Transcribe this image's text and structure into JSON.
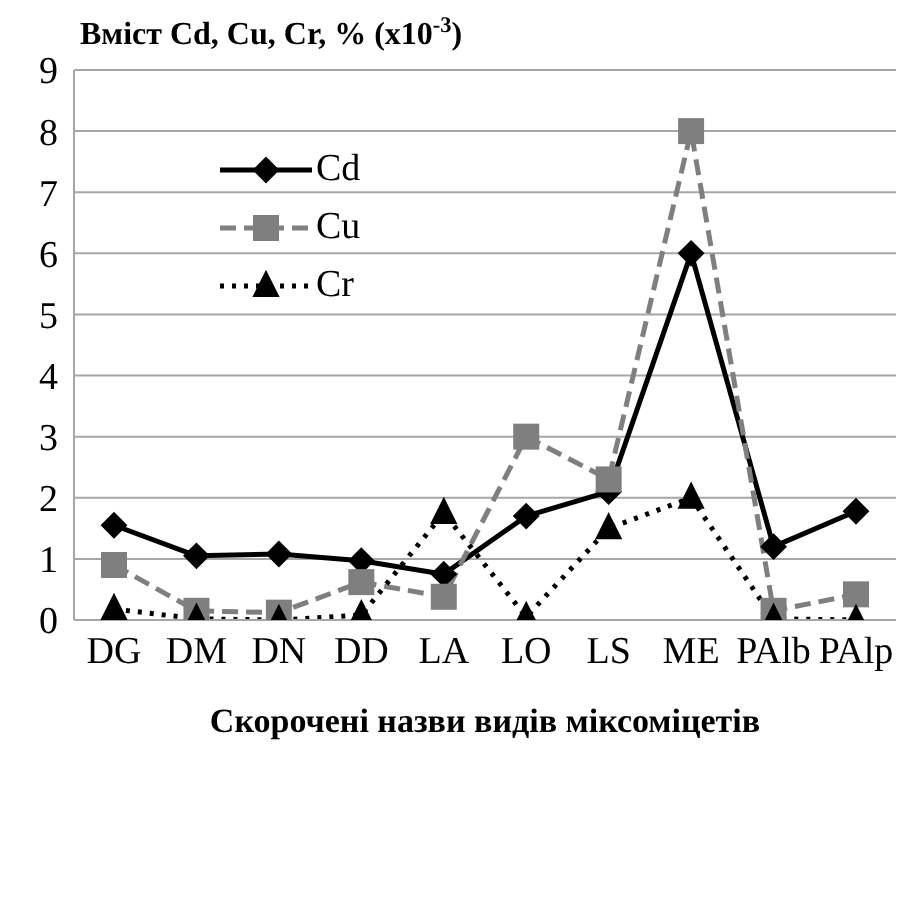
{
  "chart_data": {
    "type": "line",
    "title": "Вміст Cd,  Cu, Cr, % (x10$^{-3}$)",
    "xlabel": "Скорочені назви видів міксоміцетів",
    "categories": [
      "DG",
      "DM",
      "DN",
      "DD",
      "LA",
      "LO",
      "LS",
      "ME",
      "PAlb",
      "PAlp"
    ],
    "series": [
      {
        "name": "Cd",
        "color": "#000000",
        "marker": "diamond",
        "line_style": "solid",
        "values": [
          1.55,
          1.05,
          1.08,
          0.97,
          0.75,
          1.7,
          2.1,
          6,
          1.2,
          1.78
        ]
      },
      {
        "name": "Cu",
        "color": "#7f7f7f",
        "marker": "square",
        "line_style": "dashed",
        "values": [
          0.9,
          0.15,
          0.12,
          0.62,
          0.38,
          3.0,
          2.3,
          8,
          0.15,
          0.42
        ]
      },
      {
        "name": "Cr",
        "color": "#000000",
        "marker": "triangle",
        "line_style": "dotted",
        "values": [
          0.18,
          0.02,
          0,
          0.08,
          1.75,
          0.05,
          1.5,
          2.0,
          0.02,
          0
        ]
      }
    ],
    "ylim": [
      0,
      9
    ],
    "yticks": [
      0,
      1,
      2,
      3,
      4,
      5,
      6,
      7,
      8,
      9
    ],
    "grid": "y",
    "legend": "top left"
  }
}
